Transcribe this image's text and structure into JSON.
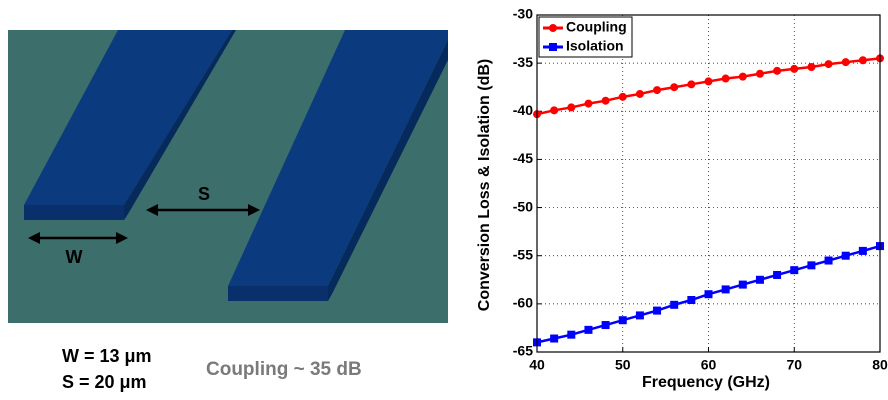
{
  "diagram": {
    "s_label": "S",
    "w_label": "W",
    "w_value": "W = 13 μm",
    "s_value": "S = 20 μm",
    "note": "Coupling ~ 35 dB"
  },
  "chart_data": {
    "type": "line",
    "x": [
      40,
      42,
      44,
      46,
      48,
      50,
      52,
      54,
      56,
      58,
      60,
      62,
      64,
      66,
      68,
      70,
      72,
      74,
      76,
      78,
      80
    ],
    "series": [
      {
        "name": "Coupling",
        "color": "#ff0000",
        "marker": "circle",
        "values": [
          -40.3,
          -39.9,
          -39.6,
          -39.2,
          -38.9,
          -38.5,
          -38.2,
          -37.8,
          -37.5,
          -37.2,
          -36.9,
          -36.6,
          -36.4,
          -36.1,
          -35.8,
          -35.6,
          -35.4,
          -35.1,
          -34.9,
          -34.7,
          -34.5
        ]
      },
      {
        "name": "Isolation",
        "color": "#0000ff",
        "marker": "square",
        "values": [
          -64,
          -63.6,
          -63.2,
          -62.7,
          -62.2,
          -61.7,
          -61.2,
          -60.7,
          -60.1,
          -59.6,
          -59,
          -58.5,
          -58,
          -57.5,
          -57,
          -56.5,
          -56,
          -55.5,
          -55,
          -54.5,
          -54
        ]
      }
    ],
    "xlabel": "Frequency (GHz)",
    "ylabel": "Conversion Loss & Isolation (dB)",
    "xlim": [
      40,
      80
    ],
    "xticks": [
      40,
      50,
      60,
      70,
      80
    ],
    "ylim": [
      -65,
      -30
    ],
    "yticks": [
      -65,
      -60,
      -55,
      -50,
      -45,
      -40,
      -35,
      -30
    ],
    "grid": true,
    "legend": "upper left"
  }
}
